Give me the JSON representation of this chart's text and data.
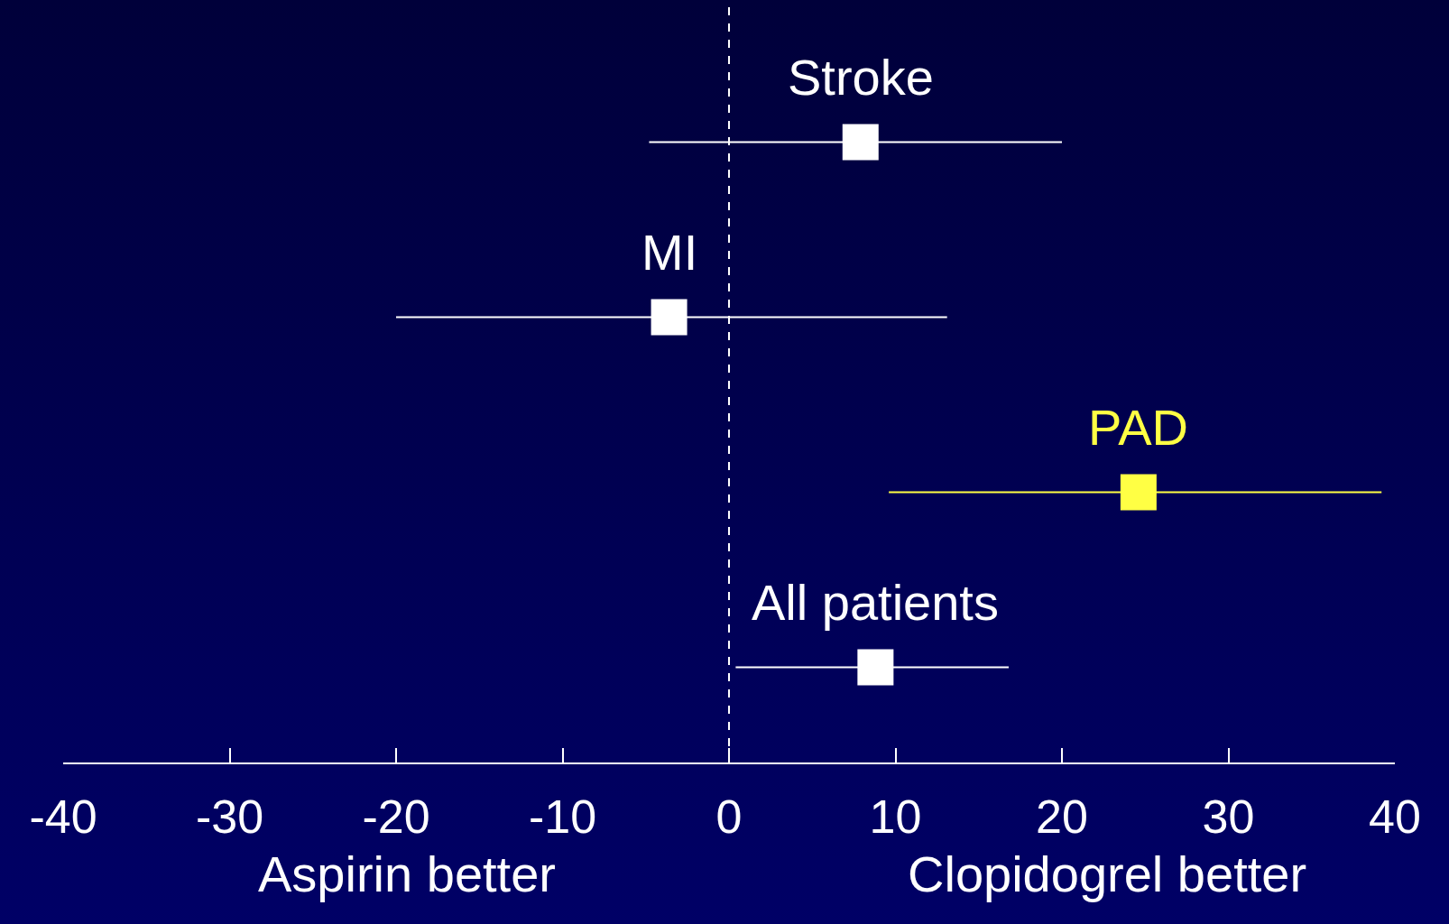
{
  "chart_data": {
    "type": "scatter",
    "orientation": "horizontal",
    "categories": [
      null,
      null,
      null,
      null
    ],
    "series": [
      {
        "color": "#ffffff",
        "values": [
          7.9,
          -3.6,
          null,
          8.8
        ],
        "errors": [
          [
            -4.8,
            20.0
          ],
          [
            -20.0,
            13.1
          ],
          null,
          [
            0.4,
            16.8
          ]
        ]
      },
      {
        "color": "#ffff44",
        "values": [
          null,
          null,
          24.6,
          null
        ],
        "errors": [
          null,
          null,
          [
            9.6,
            39.2
          ],
          null
        ]
      }
    ],
    "marker": "square",
    "xlim": [
      -40,
      40
    ],
    "xticks": [
      -40,
      -30,
      -20,
      -10,
      0,
      10,
      20,
      30,
      40
    ],
    "grid": false,
    "ref_lines": [
      {
        "axis": "x",
        "value": 0,
        "color": "#ffffff",
        "line_style": "dashed"
      }
    ],
    "annotations": [
      "Stroke",
      "MI",
      "PAD",
      "All patients",
      "Aspirin better",
      "Clopidogrel better"
    ]
  }
}
